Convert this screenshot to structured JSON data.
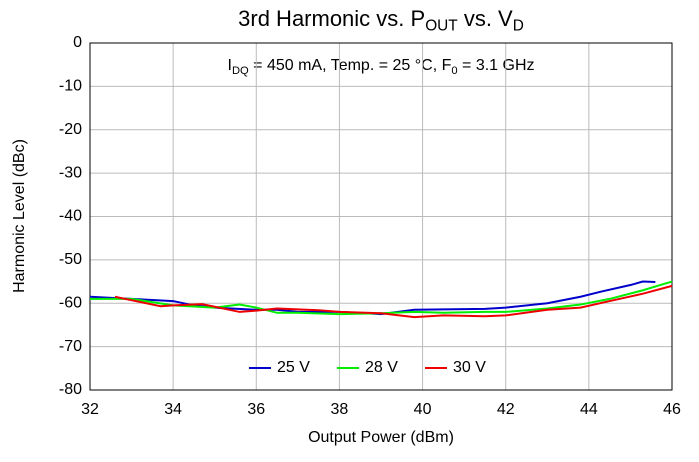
{
  "chart_data": {
    "type": "line",
    "title": [
      "3rd Harmonic vs. P",
      "OUT",
      " vs. V",
      "D"
    ],
    "annotation": [
      "I",
      "DQ",
      " = 450 mA, Temp. = 25 °C, F",
      "0",
      " = 3.1 GHz"
    ],
    "x_label": "Output Power (dBm)",
    "y_label": "Harmonic Level (dBc)",
    "xlim": [
      32,
      46
    ],
    "xticks": [
      32,
      34,
      36,
      38,
      40,
      42,
      44,
      46
    ],
    "ylim": [
      -80,
      0
    ],
    "yticks": [
      0,
      -10,
      -20,
      -30,
      -40,
      -50,
      -60,
      -70,
      -80
    ],
    "grid": true,
    "legend": "lower center",
    "series": [
      {
        "name": "25 V",
        "color": "#0000cc",
        "x": [
          32,
          33,
          34,
          34.5,
          35,
          36,
          36.5,
          37,
          38,
          39,
          39.8,
          41.5,
          42,
          43,
          43.8,
          44.3,
          45,
          45.3,
          45.6
        ],
        "values": [
          -58.5,
          -59,
          -59.5,
          -60.5,
          -61,
          -61.5,
          -61.5,
          -62,
          -62,
          -62.5,
          -61.5,
          -61.3,
          -61,
          -60,
          -58.5,
          -57.3,
          -55.8,
          -55,
          -55.1
        ]
      },
      {
        "name": "28 V",
        "color": "#00ee00",
        "x": [
          32,
          33,
          34,
          35,
          35.6,
          36,
          36.5,
          37,
          38,
          39,
          39.8,
          40.5,
          41.5,
          42,
          43,
          43.8,
          44.5,
          45.3,
          46
        ],
        "values": [
          -59,
          -59,
          -60.5,
          -61,
          -60.3,
          -61,
          -62.2,
          -62.2,
          -62.5,
          -62.3,
          -62,
          -62.2,
          -62,
          -62,
          -61.2,
          -60.3,
          -59,
          -57,
          -55
        ]
      },
      {
        "name": "30 V",
        "color": "#ee0000",
        "x": [
          32.6,
          33.7,
          34,
          34.7,
          35.6,
          36,
          36.5,
          37.5,
          38,
          39,
          39.8,
          40.5,
          41.5,
          42,
          43,
          43.8,
          44.5,
          45.3,
          46
        ],
        "values": [
          -58.5,
          -60.7,
          -60.5,
          -60.2,
          -62,
          -61.7,
          -61.2,
          -61.6,
          -62,
          -62.3,
          -63.2,
          -62.8,
          -63,
          -62.8,
          -61.5,
          -61,
          -59.5,
          -57.8,
          -56
        ]
      }
    ]
  }
}
